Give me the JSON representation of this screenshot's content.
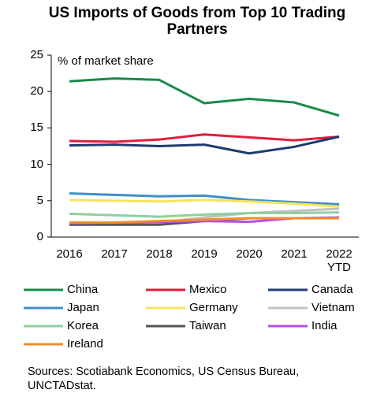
{
  "chart_data": {
    "type": "line",
    "title": "US Imports of Goods from Top 10 Trading Partners",
    "y_axis_label": "% of market share",
    "source": "Sources: Scotiabank Economics, US Census Bureau, UNCTADstat.",
    "categories": [
      "2016",
      "2017",
      "2018",
      "2019",
      "2020",
      "2021",
      "2022 YTD"
    ],
    "ylim": [
      0,
      25
    ],
    "yticks": [
      0,
      5,
      10,
      15,
      20,
      25
    ],
    "grid": false,
    "series": [
      {
        "name": "China",
        "color": "#1a8a4a",
        "values": [
          21.4,
          21.8,
          21.6,
          18.4,
          19.0,
          18.5,
          16.7
        ]
      },
      {
        "name": "Mexico",
        "color": "#e31c3d",
        "values": [
          13.2,
          13.1,
          13.4,
          14.1,
          13.7,
          13.3,
          13.8
        ]
      },
      {
        "name": "Canada",
        "color": "#1f3a6e",
        "values": [
          12.6,
          12.7,
          12.5,
          12.7,
          11.5,
          12.4,
          13.8
        ]
      },
      {
        "name": "Japan",
        "color": "#3d8fc8",
        "values": [
          6.0,
          5.8,
          5.6,
          5.7,
          5.1,
          4.8,
          4.5
        ]
      },
      {
        "name": "Germany",
        "color": "#f7e35c",
        "values": [
          5.1,
          5.0,
          4.9,
          5.1,
          4.9,
          4.6,
          4.2
        ]
      },
      {
        "name": "Vietnam",
        "color": "#c0c0c0",
        "values": [
          1.9,
          2.0,
          2.0,
          2.7,
          3.3,
          3.6,
          3.9
        ]
      },
      {
        "name": "Korea",
        "color": "#8fcf9f",
        "values": [
          3.2,
          3.0,
          2.8,
          3.1,
          3.3,
          3.3,
          3.4
        ]
      },
      {
        "name": "Taiwan",
        "color": "#555555",
        "values": [
          1.7,
          1.7,
          1.7,
          2.2,
          2.6,
          2.6,
          2.6
        ]
      },
      {
        "name": "India",
        "color": "#b44fe8",
        "values": [
          1.9,
          2.0,
          2.1,
          2.2,
          2.1,
          2.6,
          2.7
        ]
      },
      {
        "name": "Ireland",
        "color": "#f28c28",
        "values": [
          2.0,
          2.0,
          2.2,
          2.4,
          2.6,
          2.6,
          2.6
        ]
      }
    ]
  }
}
